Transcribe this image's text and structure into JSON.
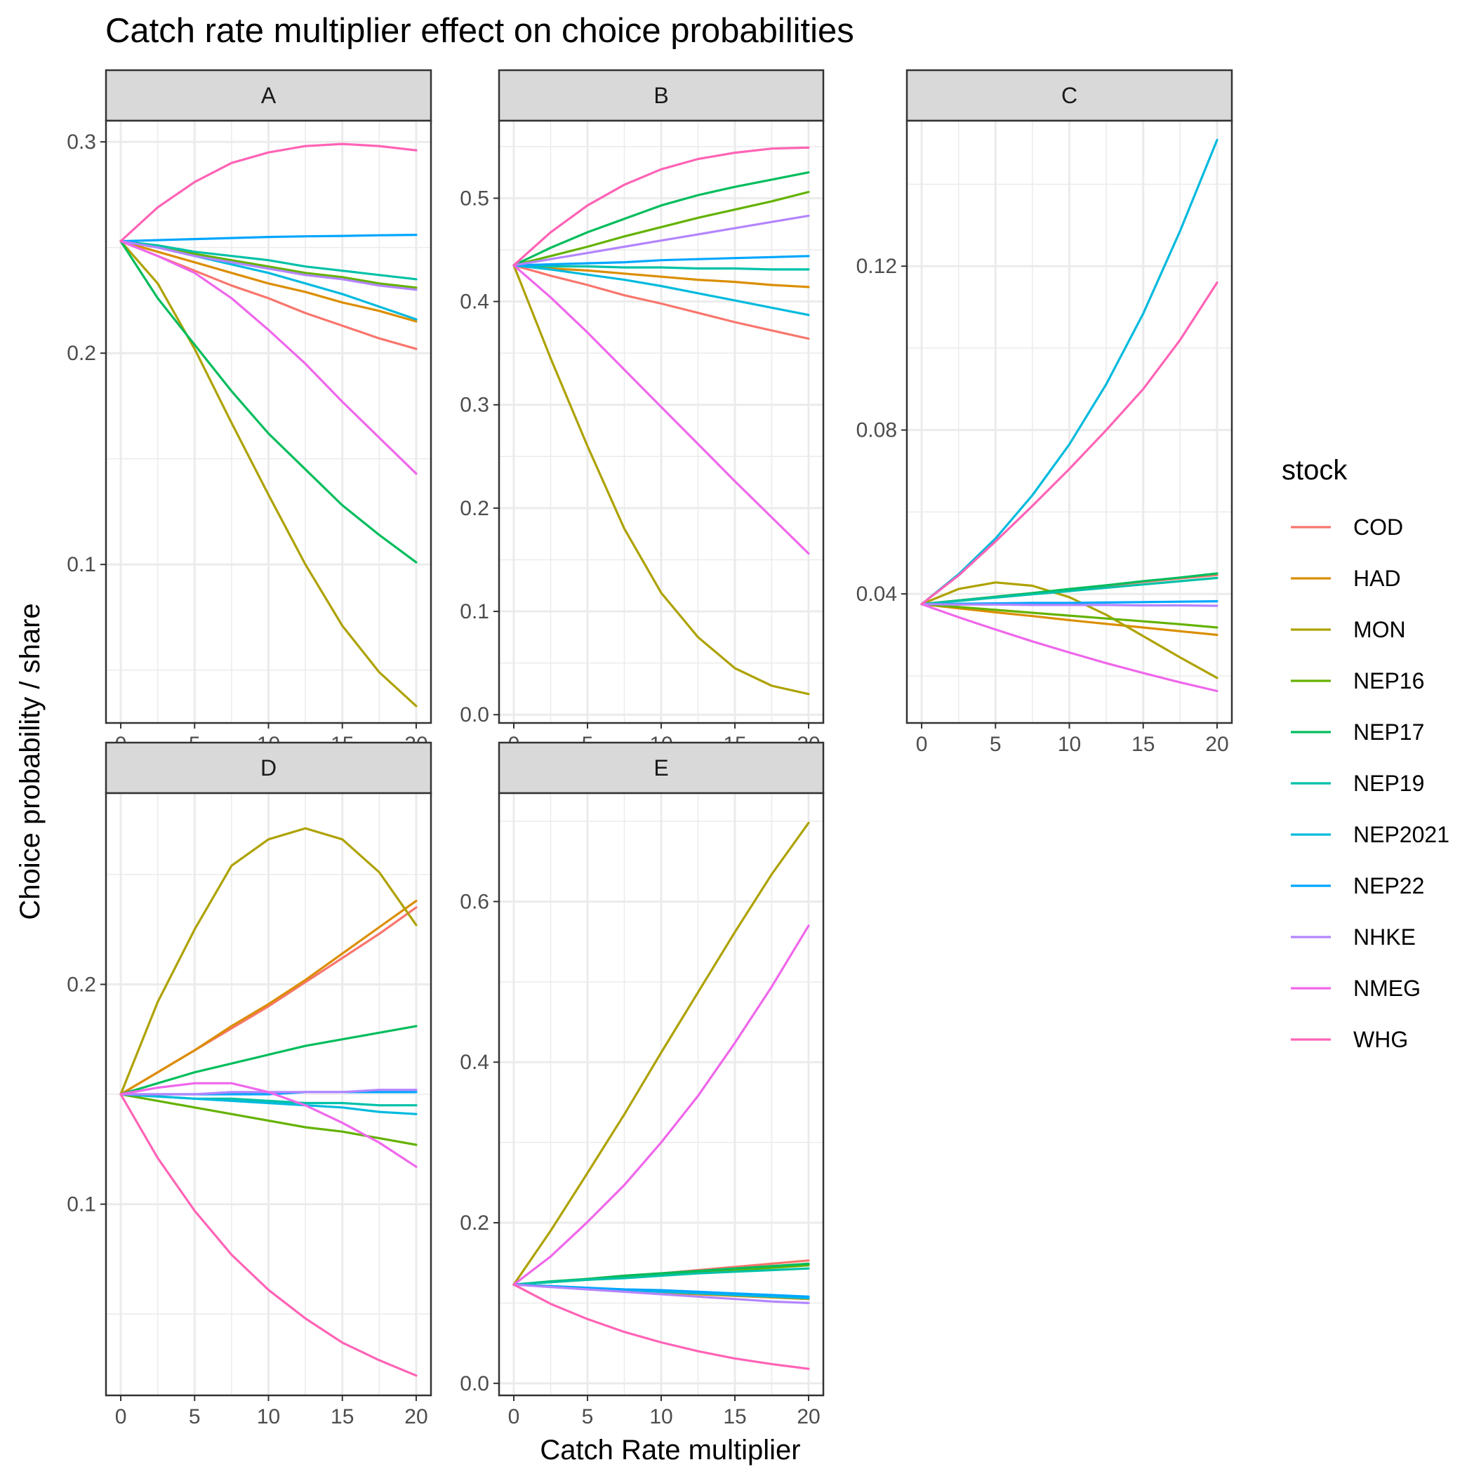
{
  "chart_data": {
    "type": "line",
    "title": "Catch rate multiplier effect on choice probabilities",
    "xlabel": "Catch Rate multiplier",
    "ylabel": "Choice probability / share",
    "legend": {
      "title": "stock",
      "placement": "right"
    },
    "grid": true,
    "x_ticks": [
      0,
      5,
      10,
      15,
      20
    ],
    "stocks": [
      "COD",
      "HAD",
      "MON",
      "NEP16",
      "NEP17",
      "NEP19",
      "NEP2021",
      "NEP22",
      "NHKE",
      "NMEG",
      "WHG"
    ],
    "colors": {
      "COD": "#F8766D",
      "HAD": "#DB8E00",
      "MON": "#AEA200",
      "NEP16": "#64B200",
      "NEP17": "#00BD5C",
      "NEP19": "#00C1A7",
      "NEP2021": "#00BADE",
      "NEP22": "#00A6FF",
      "NHKE": "#B385FF",
      "NMEG": "#EF67EB",
      "WHG": "#FF63B6"
    },
    "x": [
      0,
      2.5,
      5,
      7.5,
      10,
      12.5,
      15,
      17.5,
      20
    ],
    "panels": [
      {
        "strip": "A",
        "xlim": [
          -1,
          21
        ],
        "ylim": [
          0.025,
          0.31
        ],
        "y_ticks": [
          0.1,
          0.2,
          0.3
        ],
        "y_tick_labels": [
          "0.1",
          "0.2",
          "0.3"
        ],
        "series": [
          {
            "name": "COD",
            "values": [
              0.253,
              0.246,
              0.239,
              0.232,
              0.226,
              0.219,
              0.213,
              0.207,
              0.202
            ]
          },
          {
            "name": "HAD",
            "values": [
              0.253,
              0.248,
              0.243,
              0.238,
              0.233,
              0.229,
              0.224,
              0.22,
              0.215
            ]
          },
          {
            "name": "MON",
            "values": [
              0.253,
              0.233,
              0.202,
              0.167,
              0.133,
              0.1,
              0.071,
              0.049,
              0.033
            ]
          },
          {
            "name": "NEP16",
            "values": [
              0.253,
              0.25,
              0.247,
              0.244,
              0.241,
              0.238,
              0.236,
              0.233,
              0.231
            ]
          },
          {
            "name": "NEP17",
            "values": [
              0.253,
              0.226,
              0.204,
              0.182,
              0.162,
              0.145,
              0.128,
              0.114,
              0.101
            ]
          },
          {
            "name": "NEP19",
            "values": [
              0.253,
              0.251,
              0.248,
              0.246,
              0.244,
              0.241,
              0.239,
              0.237,
              0.235
            ]
          },
          {
            "name": "NEP2021",
            "values": [
              0.253,
              0.25,
              0.246,
              0.242,
              0.238,
              0.233,
              0.228,
              0.222,
              0.216
            ]
          },
          {
            "name": "NEP22",
            "values": [
              0.253,
              0.2535,
              0.254,
              0.2545,
              0.255,
              0.2553,
              0.2555,
              0.2558,
              0.256
            ]
          },
          {
            "name": "NHKE",
            "values": [
              0.253,
              0.25,
              0.246,
              0.243,
              0.24,
              0.237,
              0.235,
              0.232,
              0.23
            ]
          },
          {
            "name": "NMEG",
            "values": [
              0.253,
              0.246,
              0.238,
              0.226,
              0.211,
              0.195,
              0.177,
              0.16,
              0.143
            ]
          },
          {
            "name": "WHG",
            "values": [
              0.253,
              0.269,
              0.281,
              0.29,
              0.295,
              0.298,
              0.299,
              0.298,
              0.296
            ]
          }
        ]
      },
      {
        "strip": "B",
        "xlim": [
          -1,
          21
        ],
        "ylim": [
          -0.008,
          0.575
        ],
        "y_ticks": [
          0.0,
          0.1,
          0.2,
          0.3,
          0.4,
          0.5
        ],
        "y_tick_labels": [
          "0.0",
          "0.1",
          "0.2",
          "0.3",
          "0.4",
          "0.5"
        ],
        "series": [
          {
            "name": "COD",
            "values": [
              0.435,
              0.425,
              0.416,
              0.406,
              0.398,
              0.389,
              0.38,
              0.372,
              0.364
            ]
          },
          {
            "name": "HAD",
            "values": [
              0.435,
              0.432,
              0.43,
              0.427,
              0.424,
              0.421,
              0.419,
              0.416,
              0.414
            ]
          },
          {
            "name": "MON",
            "values": [
              0.435,
              0.345,
              0.26,
              0.18,
              0.118,
              0.075,
              0.045,
              0.028,
              0.02
            ]
          },
          {
            "name": "NEP16",
            "values": [
              0.435,
              0.444,
              0.453,
              0.463,
              0.472,
              0.481,
              0.489,
              0.497,
              0.506
            ]
          },
          {
            "name": "NEP17",
            "values": [
              0.435,
              0.452,
              0.467,
              0.48,
              0.493,
              0.503,
              0.511,
              0.518,
              0.525
            ]
          },
          {
            "name": "NEP19",
            "values": [
              0.435,
              0.434,
              0.434,
              0.433,
              0.433,
              0.432,
              0.432,
              0.431,
              0.431
            ]
          },
          {
            "name": "NEP2021",
            "values": [
              0.435,
              0.431,
              0.426,
              0.421,
              0.415,
              0.408,
              0.401,
              0.394,
              0.387
            ]
          },
          {
            "name": "NEP22",
            "values": [
              0.435,
              0.436,
              0.437,
              0.438,
              0.44,
              0.441,
              0.442,
              0.443,
              0.444
            ]
          },
          {
            "name": "NHKE",
            "values": [
              0.435,
              0.441,
              0.447,
              0.453,
              0.459,
              0.465,
              0.471,
              0.477,
              0.483
            ]
          },
          {
            "name": "NMEG",
            "values": [
              0.435,
              0.404,
              0.37,
              0.334,
              0.298,
              0.262,
              0.226,
              0.191,
              0.156
            ]
          },
          {
            "name": "WHG",
            "values": [
              0.435,
              0.467,
              0.493,
              0.513,
              0.528,
              0.538,
              0.544,
              0.548,
              0.549
            ]
          }
        ]
      },
      {
        "strip": "C",
        "xlim": [
          -1,
          21
        ],
        "ylim": [
          0.0085,
          0.1555
        ],
        "y_ticks": [
          0.04,
          0.08,
          0.12
        ],
        "y_tick_labels": [
          "0.04",
          "0.08",
          "0.12"
        ],
        "series": [
          {
            "name": "COD",
            "values": [
              0.0375,
              0.0384,
              0.0393,
              0.0402,
              0.0411,
              0.042,
              0.0429,
              0.0438,
              0.0446
            ]
          },
          {
            "name": "HAD",
            "values": [
              0.0375,
              0.0365,
              0.0355,
              0.0346,
              0.0336,
              0.0327,
              0.0318,
              0.0309,
              0.03
            ]
          },
          {
            "name": "MON",
            "values": [
              0.0375,
              0.0412,
              0.0428,
              0.042,
              0.0392,
              0.0349,
              0.0297,
              0.0245,
              0.0195
            ]
          },
          {
            "name": "NEP16",
            "values": [
              0.0375,
              0.0368,
              0.0361,
              0.0354,
              0.0347,
              0.034,
              0.0333,
              0.0326,
              0.0318
            ]
          },
          {
            "name": "NEP17",
            "values": [
              0.0375,
              0.0384,
              0.0393,
              0.0402,
              0.0412,
              0.0421,
              0.0431,
              0.044,
              0.045
            ]
          },
          {
            "name": "NEP19",
            "values": [
              0.0375,
              0.0383,
              0.0391,
              0.0399,
              0.0407,
              0.0415,
              0.0423,
              0.0431,
              0.0439
            ]
          },
          {
            "name": "NEP2021",
            "values": [
              0.0375,
              0.0448,
              0.0535,
              0.0641,
              0.0765,
              0.0912,
              0.1084,
              0.1286,
              0.1508
            ]
          },
          {
            "name": "NEP22",
            "values": [
              0.0375,
              0.0376,
              0.0377,
              0.0378,
              0.0378,
              0.0379,
              0.038,
              0.0381,
              0.0382
            ]
          },
          {
            "name": "NHKE",
            "values": [
              0.0375,
              0.0374,
              0.0374,
              0.0373,
              0.0373,
              0.0373,
              0.0372,
              0.0372,
              0.0371
            ]
          },
          {
            "name": "NMEG",
            "values": [
              0.0375,
              0.0343,
              0.0313,
              0.0284,
              0.0257,
              0.0231,
              0.0207,
              0.0184,
              0.0163
            ]
          },
          {
            "name": "WHG",
            "values": [
              0.0375,
              0.0445,
              0.0528,
              0.0615,
              0.0705,
              0.08,
              0.09,
              0.102,
              0.116
            ]
          }
        ]
      },
      {
        "strip": "D",
        "xlim": [
          -1,
          21
        ],
        "ylim": [
          0.013,
          0.287
        ],
        "y_ticks": [
          0.1,
          0.2
        ],
        "y_tick_labels": [
          "0.1",
          "0.2"
        ],
        "series": [
          {
            "name": "COD",
            "values": [
              0.15,
              0.16,
              0.17,
              0.18,
              0.19,
              0.201,
              0.212,
              0.223,
              0.235
            ]
          },
          {
            "name": "HAD",
            "values": [
              0.15,
              0.16,
              0.17,
              0.181,
              0.191,
              0.202,
              0.214,
              0.226,
              0.238
            ]
          },
          {
            "name": "MON",
            "values": [
              0.15,
              0.192,
              0.225,
              0.254,
              0.266,
              0.271,
              0.266,
              0.251,
              0.227
            ]
          },
          {
            "name": "NEP16",
            "values": [
              0.15,
              0.147,
              0.144,
              0.141,
              0.138,
              0.135,
              0.133,
              0.13,
              0.127
            ]
          },
          {
            "name": "NEP17",
            "values": [
              0.15,
              0.155,
              0.16,
              0.164,
              0.168,
              0.172,
              0.175,
              0.178,
              0.181
            ]
          },
          {
            "name": "NEP19",
            "values": [
              0.15,
              0.149,
              0.148,
              0.148,
              0.147,
              0.146,
              0.146,
              0.145,
              0.145
            ]
          },
          {
            "name": "NEP2021",
            "values": [
              0.15,
              0.149,
              0.148,
              0.147,
              0.146,
              0.145,
              0.144,
              0.142,
              0.141
            ]
          },
          {
            "name": "NEP22",
            "values": [
              0.15,
              0.15,
              0.15,
              0.15,
              0.15,
              0.151,
              0.151,
              0.151,
              0.151
            ]
          },
          {
            "name": "NHKE",
            "values": [
              0.15,
              0.15,
              0.15,
              0.151,
              0.151,
              0.151,
              0.151,
              0.152,
              0.152
            ]
          },
          {
            "name": "NMEG",
            "values": [
              0.15,
              0.153,
              0.155,
              0.155,
              0.151,
              0.145,
              0.137,
              0.128,
              0.117
            ]
          },
          {
            "name": "WHG",
            "values": [
              0.15,
              0.121,
              0.097,
              0.077,
              0.061,
              0.048,
              0.037,
              0.029,
              0.022
            ]
          }
        ]
      },
      {
        "strip": "E",
        "xlim": [
          -1,
          21
        ],
        "ylim": [
          -0.015,
          0.735
        ],
        "y_ticks": [
          0.0,
          0.2,
          0.4,
          0.6
        ],
        "y_tick_labels": [
          "0.0",
          "0.2",
          "0.4",
          "0.6"
        ],
        "series": [
          {
            "name": "COD",
            "values": [
              0.123,
              0.126,
              0.13,
              0.134,
              0.137,
              0.141,
              0.145,
              0.149,
              0.153
            ]
          },
          {
            "name": "HAD",
            "values": [
              0.123,
              0.121,
              0.118,
              0.116,
              0.113,
              0.111,
              0.109,
              0.107,
              0.105
            ]
          },
          {
            "name": "MON",
            "values": [
              0.123,
              0.19,
              0.262,
              0.335,
              0.412,
              0.487,
              0.562,
              0.634,
              0.698
            ]
          },
          {
            "name": "NEP16",
            "values": [
              0.123,
              0.126,
              0.129,
              0.132,
              0.135,
              0.138,
              0.141,
              0.144,
              0.147
            ]
          },
          {
            "name": "NEP17",
            "values": [
              0.123,
              0.127,
              0.13,
              0.134,
              0.137,
              0.14,
              0.143,
              0.146,
              0.149
            ]
          },
          {
            "name": "NEP19",
            "values": [
              0.123,
              0.126,
              0.129,
              0.131,
              0.134,
              0.137,
              0.139,
              0.141,
              0.143
            ]
          },
          {
            "name": "NEP2021",
            "values": [
              0.123,
              0.121,
              0.119,
              0.116,
              0.114,
              0.112,
              0.11,
              0.108,
              0.106
            ]
          },
          {
            "name": "NEP22",
            "values": [
              0.123,
              0.121,
              0.119,
              0.117,
              0.116,
              0.114,
              0.112,
              0.11,
              0.108
            ]
          },
          {
            "name": "NHKE",
            "values": [
              0.123,
              0.12,
              0.117,
              0.114,
              0.111,
              0.108,
              0.105,
              0.102,
              0.1
            ]
          },
          {
            "name": "NMEG",
            "values": [
              0.123,
              0.158,
              0.201,
              0.247,
              0.3,
              0.358,
              0.424,
              0.494,
              0.57
            ]
          },
          {
            "name": "WHG",
            "values": [
              0.123,
              0.099,
              0.08,
              0.064,
              0.051,
              0.04,
              0.031,
              0.024,
              0.018
            ]
          }
        ]
      }
    ]
  }
}
